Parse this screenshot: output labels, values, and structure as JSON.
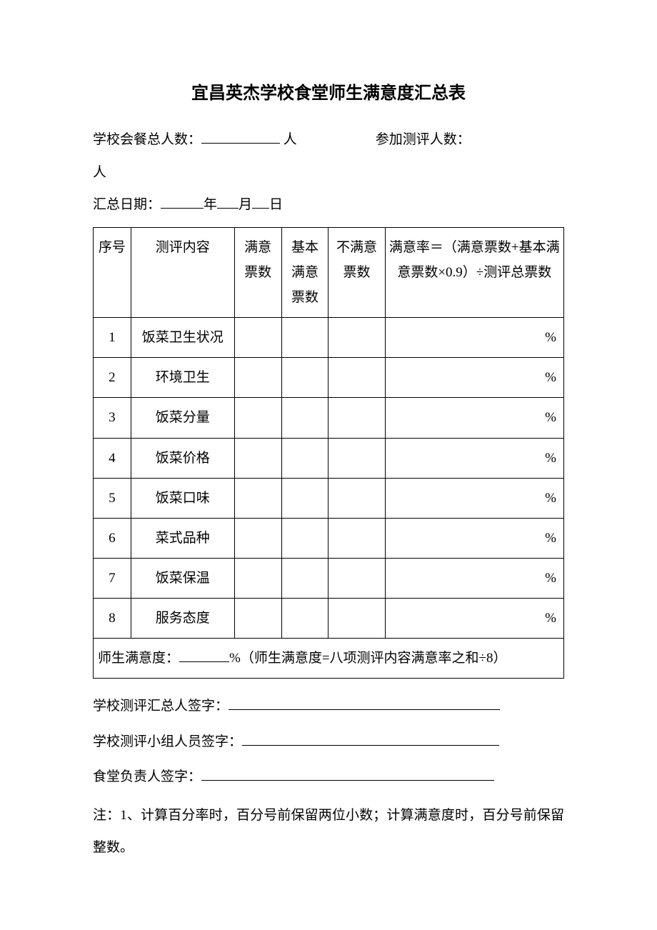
{
  "title": "宜昌英杰学校食堂师生满意度汇总表",
  "info": {
    "total_people_label_prefix": "学校会餐总人数：",
    "total_people_label_suffix": " 人",
    "participants_label_prefix": "参加测评人数：",
    "participants_label_suffix": "人",
    "date_label_prefix": "汇总日期：",
    "year_suffix": "年",
    "month_suffix": "月",
    "day_suffix": "日"
  },
  "table": {
    "headers": {
      "index": "序号",
      "content": "测评内容",
      "satisfied": "满意票数",
      "basic_satisfied": "基本满意票数",
      "not_satisfied": "不满意票数",
      "rate_formula": "满意率＝（满意票数+基本满意票数×0.9）÷测评总票数"
    },
    "rows": [
      {
        "idx": "1",
        "item": "饭菜卫生状况",
        "rate_unit": "%"
      },
      {
        "idx": "2",
        "item": "环境卫生",
        "rate_unit": "%"
      },
      {
        "idx": "3",
        "item": "饭菜分量",
        "rate_unit": "%"
      },
      {
        "idx": "4",
        "item": "饭菜价格",
        "rate_unit": "%"
      },
      {
        "idx": "5",
        "item": "饭菜口味",
        "rate_unit": "%"
      },
      {
        "idx": "6",
        "item": "菜式品种",
        "rate_unit": "%"
      },
      {
        "idx": "7",
        "item": "饭菜保温",
        "rate_unit": "%"
      },
      {
        "idx": "8",
        "item": "服务态度",
        "rate_unit": "%"
      }
    ],
    "summary": {
      "prefix": "师生满意度：",
      "percent": "%",
      "formula": "（师生满意度=八项测评内容满意率之和÷8）"
    }
  },
  "signatures": {
    "summarizer": "学校测评汇总人签字：",
    "group": "学校测评小组人员签字：",
    "canteen": "食堂负责人签字："
  },
  "note": "注：1、计算百分率时，百分号前保留两位小数；计算满意度时，百分号前保留整数。"
}
